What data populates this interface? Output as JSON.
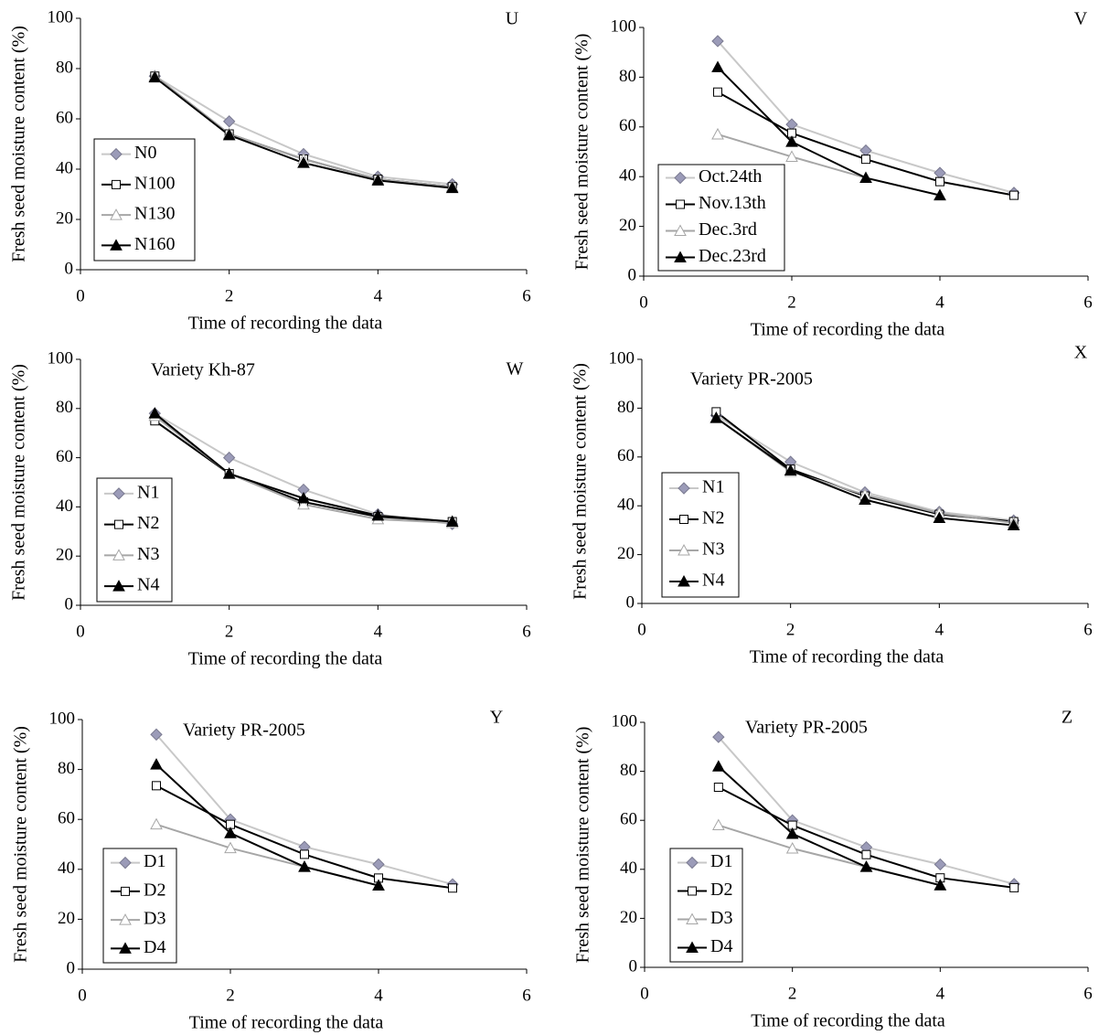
{
  "chart_data": [
    {
      "type": "line",
      "title": "U",
      "x_label": "Time of recording the data",
      "y_label": "Fresh seed moisture content (%)",
      "x": [
        1,
        2,
        3,
        4,
        5
      ],
      "xlim": [
        0,
        6
      ],
      "xticks": [
        0,
        2,
        4,
        6
      ],
      "ylim": [
        0,
        100
      ],
      "yticks": [
        0,
        20,
        40,
        60,
        80,
        100
      ],
      "series": [
        {
          "name": "N0",
          "color": "#c8c8c8",
          "marker": "diamond",
          "marker_fill": "#9b9bb8",
          "values": [
            77,
            59,
            46,
            37,
            34
          ]
        },
        {
          "name": "N100",
          "color": "#000000",
          "marker": "square",
          "marker_fill": "#ffffff",
          "values": [
            77,
            54,
            44,
            36,
            33
          ]
        },
        {
          "name": "N130",
          "color": "#a6a6a6",
          "marker": "triangle",
          "marker_fill": "#ffffff",
          "values": [
            77,
            54,
            44,
            36,
            33
          ]
        },
        {
          "name": "N160",
          "color": "#000000",
          "marker": "triangle",
          "marker_fill": "#000000",
          "values": [
            76.5,
            53.5,
            42.5,
            35.5,
            32.5
          ]
        }
      ]
    },
    {
      "type": "line",
      "title": "V",
      "x_label": "Time of recording the data",
      "y_label": "Fresh seed moisture content (%)",
      "x": [
        1,
        2,
        3,
        4,
        5
      ],
      "xlim": [
        0,
        6
      ],
      "xticks": [
        0,
        2,
        4,
        6
      ],
      "ylim": [
        0,
        100
      ],
      "yticks": [
        0,
        20,
        40,
        60,
        80,
        100
      ],
      "series": [
        {
          "name": "Oct.24th",
          "color": "#c8c8c8",
          "marker": "diamond",
          "marker_fill": "#9b9bb8",
          "values": [
            94.5,
            61,
            50.5,
            41.5,
            33.5
          ]
        },
        {
          "name": "Nov.13th",
          "color": "#000000",
          "marker": "square",
          "marker_fill": "#ffffff",
          "values": [
            74,
            57.5,
            47,
            38,
            32.5
          ]
        },
        {
          "name": "Dec.3rd",
          "color": "#a6a6a6",
          "marker": "triangle",
          "marker_fill": "#ffffff",
          "values": [
            57,
            48,
            39.5,
            32.5,
            null
          ]
        },
        {
          "name": "Dec.23rd",
          "color": "#000000",
          "marker": "triangle",
          "marker_fill": "#000000",
          "values": [
            84,
            54,
            39.5,
            32.5,
            null
          ]
        }
      ]
    },
    {
      "type": "line",
      "title": "W",
      "annotation": "Variety Kh-87",
      "x_label": "Time of recording the data",
      "y_label": "Fresh seed moisture content (%)",
      "x": [
        1,
        2,
        3,
        4,
        5
      ],
      "xlim": [
        0,
        6
      ],
      "xticks": [
        0,
        2,
        4,
        6
      ],
      "ylim": [
        0,
        100
      ],
      "yticks": [
        0,
        20,
        40,
        60,
        80,
        100
      ],
      "series": [
        {
          "name": "N1",
          "color": "#c8c8c8",
          "marker": "diamond",
          "marker_fill": "#9b9bb8",
          "values": [
            78,
            60,
            47,
            37,
            33
          ]
        },
        {
          "name": "N2",
          "color": "#000000",
          "marker": "square",
          "marker_fill": "#ffffff",
          "values": [
            75,
            53.5,
            42,
            36,
            34
          ]
        },
        {
          "name": "N3",
          "color": "#a6a6a6",
          "marker": "triangle",
          "marker_fill": "#ffffff",
          "values": [
            77,
            53.5,
            41,
            35,
            33.5
          ]
        },
        {
          "name": "N4",
          "color": "#000000",
          "marker": "triangle",
          "marker_fill": "#000000",
          "values": [
            78,
            53.5,
            43.5,
            36.5,
            34
          ]
        }
      ]
    },
    {
      "type": "line",
      "title": "X",
      "annotation": "Variety PR-2005",
      "x_label": "Time of recording the data",
      "y_label": "Fresh seed moisture content (%)",
      "x": [
        1,
        2,
        3,
        4,
        5
      ],
      "xlim": [
        0,
        6
      ],
      "xticks": [
        0,
        2,
        4,
        6
      ],
      "ylim": [
        0,
        100
      ],
      "yticks": [
        0,
        20,
        40,
        60,
        80,
        100
      ],
      "series": [
        {
          "name": "N1",
          "color": "#c8c8c8",
          "marker": "diamond",
          "marker_fill": "#9b9bb8",
          "values": [
            77,
            58,
            45.5,
            37.5,
            34
          ]
        },
        {
          "name": "N2",
          "color": "#000000",
          "marker": "square",
          "marker_fill": "#ffffff",
          "values": [
            78.5,
            55,
            44,
            36.5,
            33.5
          ]
        },
        {
          "name": "N3",
          "color": "#a6a6a6",
          "marker": "triangle",
          "marker_fill": "#ffffff",
          "values": [
            76,
            54,
            44.5,
            37,
            33
          ]
        },
        {
          "name": "N4",
          "color": "#000000",
          "marker": "triangle",
          "marker_fill": "#000000",
          "values": [
            76,
            54.5,
            42.5,
            35,
            32
          ]
        }
      ]
    },
    {
      "type": "line",
      "title": "Y",
      "annotation": "Variety PR-2005",
      "x_label": "Time of recording the data",
      "y_label": "Fresh seed moisture content (%)",
      "x": [
        1,
        2,
        3,
        4,
        5
      ],
      "xlim": [
        0,
        6
      ],
      "xticks": [
        0,
        2,
        4,
        6
      ],
      "ylim": [
        0,
        100
      ],
      "yticks": [
        0,
        20,
        40,
        60,
        80,
        100
      ],
      "series": [
        {
          "name": "D1",
          "color": "#c8c8c8",
          "marker": "diamond",
          "marker_fill": "#9b9bb8",
          "values": [
            94,
            60,
            49,
            42,
            34
          ]
        },
        {
          "name": "D2",
          "color": "#000000",
          "marker": "square",
          "marker_fill": "#ffffff",
          "values": [
            73.5,
            58,
            46,
            36.5,
            32.5
          ]
        },
        {
          "name": "D3",
          "color": "#a6a6a6",
          "marker": "triangle",
          "marker_fill": "#ffffff",
          "values": [
            58,
            48.5,
            41,
            33.5,
            null
          ]
        },
        {
          "name": "D4",
          "color": "#000000",
          "marker": "triangle",
          "marker_fill": "#000000",
          "values": [
            82,
            54.5,
            41,
            33.5,
            null
          ]
        }
      ]
    },
    {
      "type": "line",
      "title": "Z",
      "annotation": "Variety PR-2005",
      "x_label": "Time of recording the data",
      "y_label": "Fresh seed moisture content (%)",
      "x": [
        1,
        2,
        3,
        4,
        5
      ],
      "xlim": [
        0,
        6
      ],
      "xticks": [
        0,
        2,
        4,
        6
      ],
      "ylim": [
        0,
        100
      ],
      "yticks": [
        0,
        20,
        40,
        60,
        80,
        100
      ],
      "series": [
        {
          "name": "D1",
          "color": "#c8c8c8",
          "marker": "diamond",
          "marker_fill": "#9b9bb8",
          "values": [
            94,
            60,
            49,
            42,
            34
          ]
        },
        {
          "name": "D2",
          "color": "#000000",
          "marker": "square",
          "marker_fill": "#ffffff",
          "values": [
            73.5,
            58,
            46,
            36.5,
            32.5
          ]
        },
        {
          "name": "D3",
          "color": "#a6a6a6",
          "marker": "triangle",
          "marker_fill": "#ffffff",
          "values": [
            58,
            48.5,
            41,
            33.5,
            null
          ]
        },
        {
          "name": "D4",
          "color": "#000000",
          "marker": "triangle",
          "marker_fill": "#000000",
          "values": [
            82,
            54.5,
            41,
            33.5,
            null
          ]
        }
      ]
    }
  ]
}
